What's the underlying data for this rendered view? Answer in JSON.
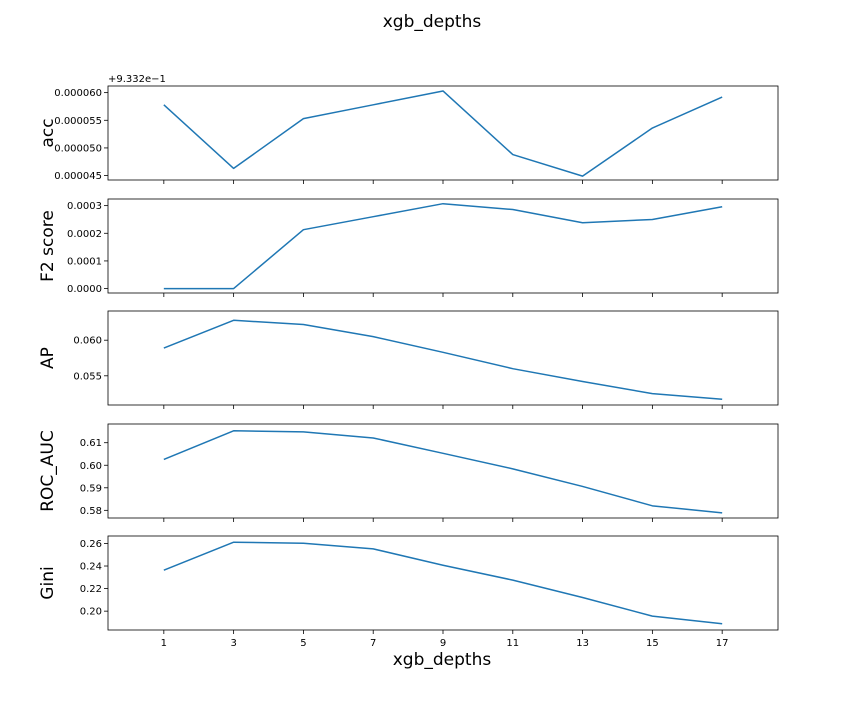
{
  "chart_data": {
    "type": "line",
    "title": "xgb_depths",
    "xlabel": "xgb_depths",
    "x": [
      1,
      3,
      5,
      7,
      9,
      11,
      13,
      15,
      17
    ],
    "xticks": [
      "1",
      "3",
      "5",
      "7",
      "9",
      "11",
      "13",
      "15",
      "17"
    ],
    "line_color": "#1f77b4",
    "grid": false,
    "subplots": [
      {
        "ylabel": "acc",
        "offset_text": "+9.332e−1",
        "yticks": [
          "0.000045",
          "0.000050",
          "0.000055",
          "0.000060"
        ],
        "ytick_values": [
          4.5e-05,
          5e-05,
          5.5e-05,
          6e-05
        ],
        "ylim": [
          4.42e-05,
          6.12e-05
        ],
        "values": [
          5.78e-05,
          4.63e-05,
          5.53e-05,
          5.78e-05,
          6.03e-05,
          4.88e-05,
          4.49e-05,
          5.36e-05,
          5.92e-05
        ]
      },
      {
        "ylabel": "F2 score",
        "yticks": [
          "0.0000",
          "0.0001",
          "0.0002",
          "0.0003"
        ],
        "ytick_values": [
          0,
          0.0001,
          0.0002,
          0.0003
        ],
        "ylim": [
          -1.6e-05,
          0.000324
        ],
        "values": [
          0.0,
          0.0,
          0.000213,
          0.00026,
          0.000307,
          0.000286,
          0.000238,
          0.00025,
          0.000296
        ]
      },
      {
        "ylabel": "AP",
        "yticks": [
          "0.055",
          "0.060"
        ],
        "ytick_values": [
          0.055,
          0.06
        ],
        "ylim": [
          0.0509,
          0.0641
        ],
        "values": [
          0.0589,
          0.0628,
          0.0622,
          0.0605,
          0.0583,
          0.056,
          0.0542,
          0.0525,
          0.0517
        ]
      },
      {
        "ylabel": "ROC_AUC",
        "yticks": [
          "0.58",
          "0.59",
          "0.60",
          "0.61"
        ],
        "ytick_values": [
          0.58,
          0.59,
          0.6,
          0.61
        ],
        "ylim": [
          0.5766,
          0.6183
        ],
        "values": [
          0.6026,
          0.6153,
          0.6148,
          0.6121,
          0.6053,
          0.5984,
          0.5906,
          0.582,
          0.5789
        ]
      },
      {
        "ylabel": "Gini",
        "yticks": [
          "0.20",
          "0.22",
          "0.24",
          "0.26"
        ],
        "ytick_values": [
          0.2,
          0.22,
          0.24,
          0.26
        ],
        "ylim": [
          0.1833,
          0.2666
        ],
        "values": [
          0.2363,
          0.2611,
          0.2602,
          0.2552,
          0.2407,
          0.2275,
          0.2121,
          0.1956,
          0.1888
        ]
      }
    ]
  }
}
